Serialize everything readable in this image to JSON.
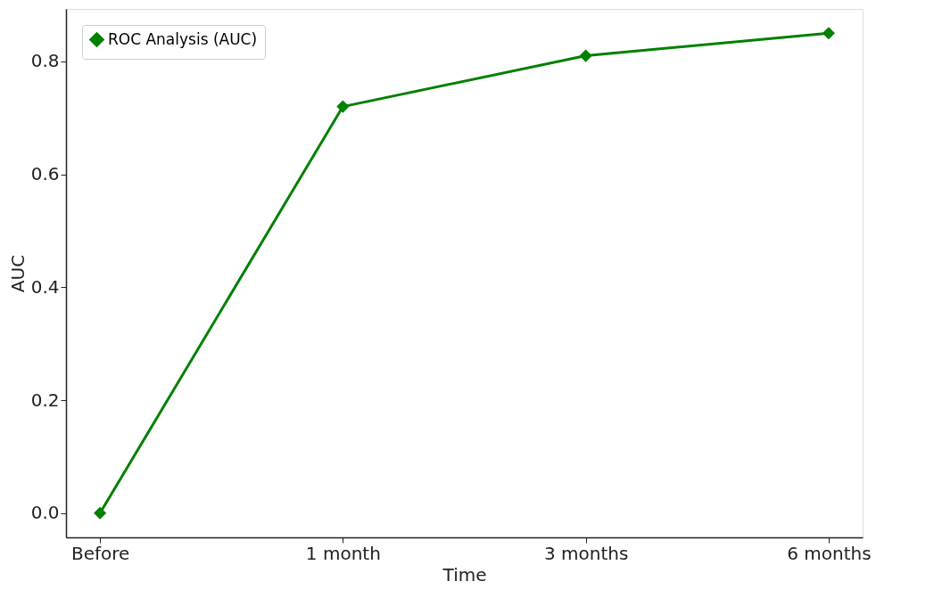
{
  "chart_data": {
    "type": "line",
    "xlabel": "Time",
    "ylabel": "AUC",
    "categories": [
      "Before",
      "1 month",
      "3 months",
      "6 months"
    ],
    "series": [
      {
        "name": "ROC Analysis (AUC)",
        "color": "#008000",
        "values": [
          0.0,
          0.72,
          0.81,
          0.85
        ]
      }
    ],
    "ylim": [
      -0.043,
      0.893
    ],
    "yticks": [
      {
        "value": 0,
        "label": "0.0"
      },
      0.2,
      0.4,
      0.6,
      0.8
    ],
    "marker": "diamond",
    "line_style": "solid",
    "legend": "top left",
    "grid": false
  }
}
